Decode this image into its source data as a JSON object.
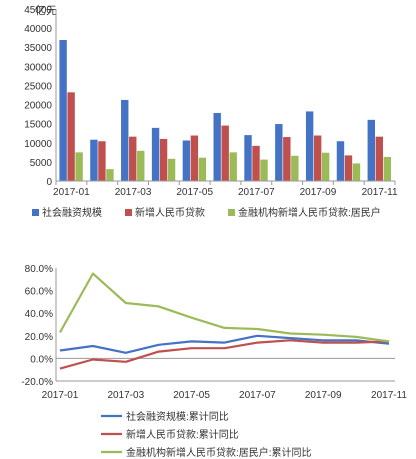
{
  "chart_data": [
    {
      "type": "bar",
      "ylabel": "亿元",
      "ylim": [
        0,
        45000
      ],
      "yticks": [
        0,
        5000,
        10000,
        15000,
        20000,
        25000,
        30000,
        35000,
        40000,
        45000
      ],
      "grid": false,
      "legend_position": "bottom",
      "categories": [
        "2017-01",
        "2017-02",
        "2017-03",
        "2017-04",
        "2017-05",
        "2017-06",
        "2017-07",
        "2017-08",
        "2017-09",
        "2017-10",
        "2017-11"
      ],
      "xtick_labels": [
        "2017-01",
        "",
        "2017-03",
        "",
        "2017-05",
        "",
        "2017-07",
        "",
        "2017-09",
        "",
        "2017-11"
      ],
      "series": [
        {
          "name": "社会融资规模",
          "color": "#4472c4",
          "values": [
            36900,
            10800,
            21200,
            13900,
            10600,
            17800,
            12000,
            14900,
            18200,
            10400,
            16000
          ]
        },
        {
          "name": "新增人民币贷款",
          "color": "#c0504d",
          "values": [
            23200,
            10400,
            11600,
            11000,
            11900,
            14500,
            9200,
            11500,
            11900,
            6700,
            11600
          ]
        },
        {
          "name": "金融机构新增人民币贷款:居民户",
          "color": "#9bbb59",
          "values": [
            7500,
            3100,
            7900,
            5800,
            6100,
            7500,
            5600,
            6600,
            7400,
            4600,
            6300
          ]
        }
      ]
    },
    {
      "type": "line",
      "ylim": [
        -20,
        80
      ],
      "yticks": [
        -20,
        0,
        20,
        40,
        60,
        80
      ],
      "ytick_labels": [
        "-20.0%",
        "0.0%",
        "20.0%",
        "40.0%",
        "60.0%",
        "80.0%"
      ],
      "grid": false,
      "legend_position": "bottom",
      "categories": [
        "2017-01",
        "2017-02",
        "2017-03",
        "2017-04",
        "2017-05",
        "2017-06",
        "2017-07",
        "2017-08",
        "2017-09",
        "2017-10",
        "2017-11"
      ],
      "xtick_labels": [
        "2017-01",
        "",
        "2017-03",
        "",
        "2017-05",
        "",
        "2017-07",
        "",
        "2017-09",
        "",
        "2017-11"
      ],
      "series": [
        {
          "name": "社会融资规模:累计同比",
          "color": "#4472c4",
          "values": [
            7,
            11,
            5,
            12,
            15,
            14,
            20,
            18,
            16,
            16,
            13
          ]
        },
        {
          "name": "新增人民币贷款:累计同比",
          "color": "#c0504d",
          "values": [
            -9,
            -1,
            -3,
            6,
            9,
            9,
            14,
            16,
            14,
            14,
            15
          ]
        },
        {
          "name": "金融机构新增人民币贷款:居民户:累计同比",
          "color": "#9bbb59",
          "values": [
            23,
            75,
            49,
            46,
            36,
            27,
            26,
            22,
            21,
            19,
            15
          ]
        }
      ]
    }
  ]
}
